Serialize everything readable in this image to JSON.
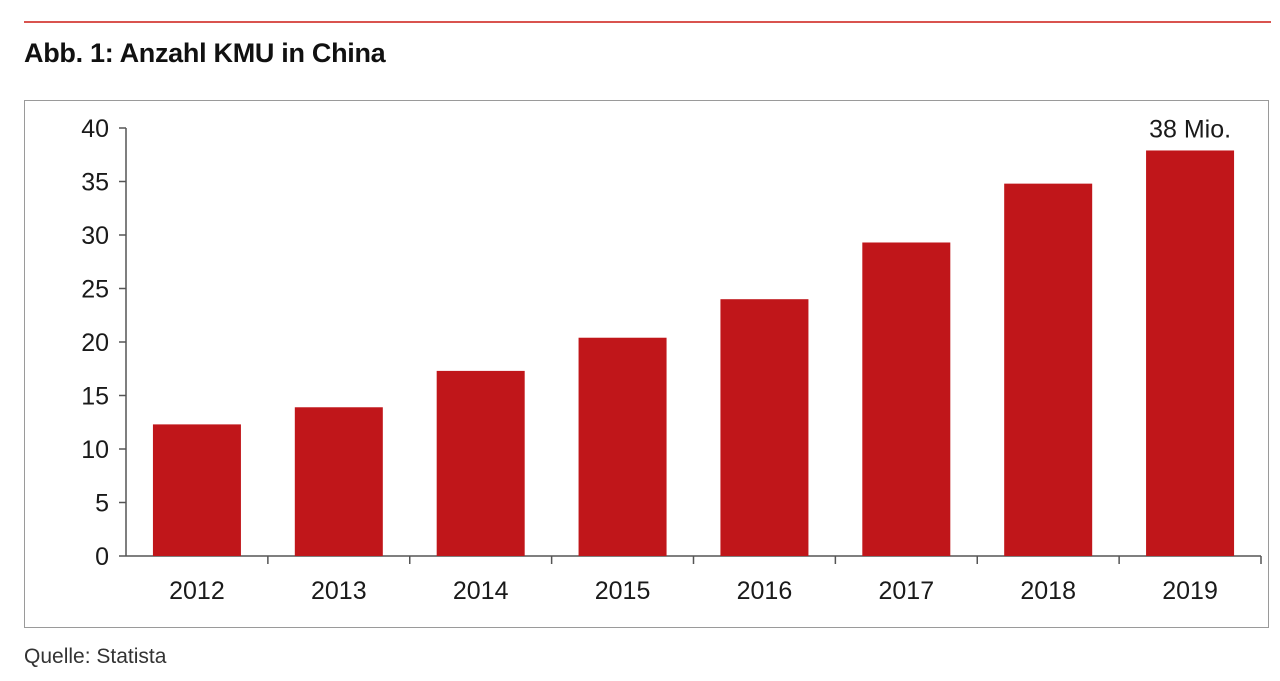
{
  "figure": {
    "title": "Abb. 1: Anzahl KMU in China",
    "source": "Quelle: Statista"
  },
  "colors": {
    "bar": "#c0161a",
    "rule": "#d9534f",
    "axis": "#555555"
  },
  "chart_data": {
    "type": "bar",
    "title": "Abb. 1: Anzahl KMU in China",
    "xlabel": "",
    "ylabel": "",
    "categories": [
      "2012",
      "2013",
      "2014",
      "2015",
      "2016",
      "2017",
      "2018",
      "2019"
    ],
    "values": [
      12.3,
      13.9,
      17.3,
      20.4,
      24.0,
      29.3,
      34.8,
      37.9
    ],
    "ylim": [
      0,
      40
    ],
    "yticks": [
      "0",
      "5",
      "10",
      "15",
      "20",
      "25",
      "30",
      "35",
      "40"
    ],
    "grid": false,
    "legend": "none",
    "annotations": [
      {
        "category": "2019",
        "text": "38 Mio."
      }
    ]
  }
}
